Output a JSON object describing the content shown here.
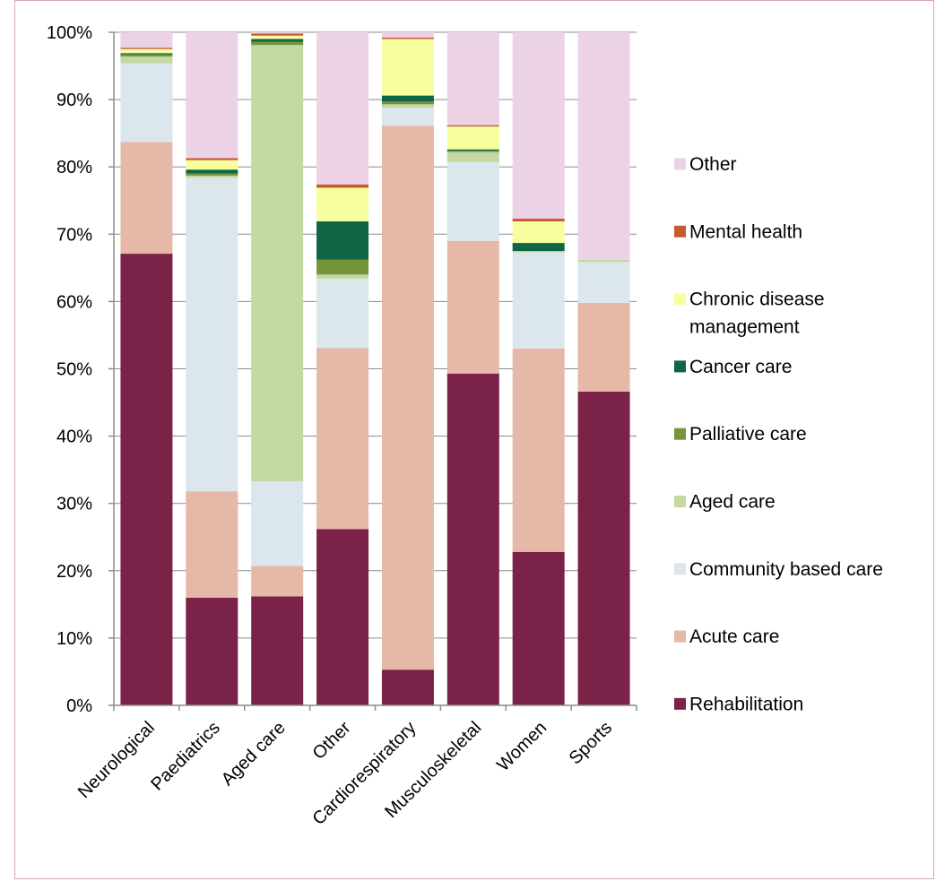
{
  "chart_data": {
    "type": "bar",
    "stacked": true,
    "categories": [
      "Neurological",
      "Paediatrics",
      "Aged care",
      "Other",
      "Cardiorespiratory",
      "Musculoskeletal",
      "Women",
      "Sports"
    ],
    "series": [
      {
        "name": "Rehabilitation",
        "color": "#7b2249",
        "values": [
          67.1,
          16.0,
          16.2,
          26.2,
          5.3,
          49.3,
          22.8,
          46.6
        ]
      },
      {
        "name": "Acute care",
        "color": "#e6b8a7",
        "values": [
          16.6,
          15.8,
          4.5,
          26.9,
          80.8,
          19.7,
          30.2,
          13.2
        ]
      },
      {
        "name": "Community based care",
        "color": "#dce6ed",
        "values": [
          11.7,
          46.6,
          12.6,
          10.3,
          2.7,
          11.7,
          14.3,
          6.1
        ]
      },
      {
        "name": "Aged care",
        "color": "#c4d8a2",
        "values": [
          1.0,
          0.3,
          64.8,
          0.6,
          0.5,
          1.5,
          0.2,
          0.3
        ]
      },
      {
        "name": "Palliative care",
        "color": "#77933c",
        "values": [
          0.3,
          0.3,
          0.5,
          2.2,
          0.4,
          0.2,
          0.0,
          0.0
        ]
      },
      {
        "name": "Cancer care",
        "color": "#0e6645",
        "values": [
          0.2,
          0.6,
          0.4,
          5.7,
          0.9,
          0.2,
          1.2,
          0.0
        ]
      },
      {
        "name": "Chronic disease management",
        "color": "#f7fe9e",
        "values": [
          0.6,
          1.4,
          0.5,
          5.0,
          8.4,
          3.4,
          3.2,
          0.0
        ]
      },
      {
        "name": "Mental health",
        "color": "#c55a33",
        "values": [
          0.2,
          0.3,
          0.3,
          0.5,
          0.2,
          0.2,
          0.4,
          0.0
        ]
      },
      {
        "name": "Other",
        "color": "#ebd3e5",
        "values": [
          2.3,
          18.7,
          0.2,
          22.6,
          0.8,
          13.8,
          27.7,
          33.8
        ]
      }
    ],
    "y_ticks": [
      "0%",
      "10%",
      "20%",
      "30%",
      "40%",
      "50%",
      "60%",
      "70%",
      "80%",
      "90%",
      "100%"
    ],
    "ylim": [
      0,
      100
    ],
    "grid": true,
    "legend_position": "right",
    "legend_order": [
      "Other",
      "Mental health",
      "Chronic disease management",
      "Cancer care",
      "Palliative care",
      "Aged care",
      "Community based care",
      "Acute care",
      "Rehabilitation"
    ],
    "legend_lines": {
      "Chronic disease management": [
        "Chronic disease",
        "management"
      ]
    },
    "title": "",
    "xlabel": "",
    "ylabel": ""
  }
}
